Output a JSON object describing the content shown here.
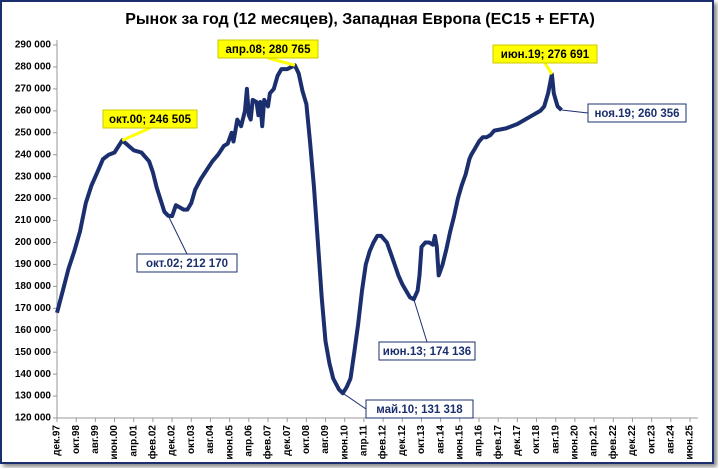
{
  "chart_data": {
    "type": "line",
    "title": "Рынок за год (12 месяцев), Западная Европа (ЕС15 + EFTA)",
    "x": [
      "1997-12",
      "1998-03",
      "1998-06",
      "1998-09",
      "1998-12",
      "1999-03",
      "1999-06",
      "1999-09",
      "1999-12",
      "2000-03",
      "2000-06",
      "2000-10",
      "2000-12",
      "2001-04",
      "2001-08",
      "2001-12",
      "2002-02",
      "2002-04",
      "2002-08",
      "2002-10",
      "2002-12",
      "2003-02",
      "2003-04",
      "2003-06",
      "2003-08",
      "2003-10",
      "2003-12",
      "2004-03",
      "2004-06",
      "2004-09",
      "2004-12",
      "2005-03",
      "2005-05",
      "2005-07",
      "2005-08",
      "2005-10",
      "2005-12",
      "2006-02",
      "2006-03",
      "2006-04",
      "2006-05",
      "2006-06",
      "2006-08",
      "2006-09",
      "2006-10",
      "2006-11",
      "2006-12",
      "2007-02",
      "2007-03",
      "2007-05",
      "2007-07",
      "2007-09",
      "2007-12",
      "2008-04",
      "2008-06",
      "2008-08",
      "2008-10",
      "2008-12",
      "2009-02",
      "2009-04",
      "2009-06",
      "2009-08",
      "2009-10",
      "2009-12",
      "2010-03",
      "2010-05",
      "2010-07",
      "2010-09",
      "2010-11",
      "2011-01",
      "2011-03",
      "2011-05",
      "2011-07",
      "2011-09",
      "2011-11",
      "2012-01",
      "2012-04",
      "2012-06",
      "2012-08",
      "2012-10",
      "2012-12",
      "2013-02",
      "2013-04",
      "2013-06",
      "2013-08",
      "2013-09",
      "2013-10",
      "2013-12",
      "2014-02",
      "2014-04",
      "2014-05",
      "2014-06",
      "2014-07",
      "2014-09",
      "2014-11",
      "2015-01",
      "2015-03",
      "2015-05",
      "2015-07",
      "2015-09",
      "2015-11",
      "2015-12",
      "2016-02",
      "2016-04",
      "2016-06",
      "2016-08",
      "2016-10",
      "2016-12",
      "2017-06",
      "2017-12",
      "2018-04",
      "2018-08",
      "2018-10",
      "2018-12",
      "2019-02",
      "2019-04",
      "2019-06",
      "2019-07",
      "2019-08",
      "2019-09",
      "2019-11"
    ],
    "series": [
      {
        "color": "#1b2f6e",
        "values": [
          168000,
          178000,
          188000,
          196000,
          205000,
          218000,
          226000,
          232000,
          238000,
          240000,
          241000,
          246505,
          245000,
          242000,
          241000,
          237000,
          232000,
          225000,
          214000,
          212170,
          212000,
          217000,
          216000,
          215000,
          215000,
          218000,
          224000,
          229000,
          233000,
          237000,
          240000,
          244000,
          245000,
          250000,
          246000,
          256000,
          253000,
          260000,
          270000,
          258000,
          256000,
          265000,
          264000,
          258000,
          264000,
          253000,
          265000,
          262000,
          268000,
          270000,
          276000,
          279000,
          279000,
          280765,
          277000,
          269000,
          263000,
          245000,
          225000,
          200000,
          175000,
          155000,
          145000,
          138000,
          133000,
          131318,
          134000,
          138000,
          150000,
          163000,
          178000,
          190000,
          196000,
          200000,
          203000,
          203000,
          200000,
          195000,
          190000,
          185000,
          181000,
          178000,
          175000,
          174136,
          178000,
          185000,
          198000,
          200000,
          200000,
          199000,
          203000,
          198000,
          185000,
          190000,
          197000,
          205000,
          212000,
          220000,
          226000,
          231000,
          238000,
          240000,
          243000,
          246000,
          248000,
          248000,
          249000,
          251000,
          252000,
          254000,
          256000,
          258000,
          259000,
          260000,
          262000,
          268000,
          276691,
          268000,
          265000,
          262000,
          260356
        ]
      }
    ],
    "xlim": [
      "1997-12",
      "2025-06"
    ],
    "xticks": [
      {
        "value": "1997-12",
        "label": "дек.97"
      },
      {
        "value": "1998-10",
        "label": "окт.98"
      },
      {
        "value": "1999-08",
        "label": "авг.99"
      },
      {
        "value": "2000-06",
        "label": "июн.00"
      },
      {
        "value": "2001-04",
        "label": "апр.01"
      },
      {
        "value": "2002-02",
        "label": "фев.02"
      },
      {
        "value": "2002-12",
        "label": "дек.02"
      },
      {
        "value": "2003-10",
        "label": "окт.03"
      },
      {
        "value": "2004-08",
        "label": "авг.04"
      },
      {
        "value": "2005-06",
        "label": "июн.05"
      },
      {
        "value": "2006-04",
        "label": "апр.06"
      },
      {
        "value": "2007-02",
        "label": "фев.07"
      },
      {
        "value": "2007-12",
        "label": "дек.07"
      },
      {
        "value": "2008-10",
        "label": "окт.08"
      },
      {
        "value": "2009-08",
        "label": "авг.09"
      },
      {
        "value": "2010-06",
        "label": "июн.10"
      },
      {
        "value": "2011-04",
        "label": "апр.11"
      },
      {
        "value": "2012-02",
        "label": "фев.12"
      },
      {
        "value": "2012-12",
        "label": "дек.12"
      },
      {
        "value": "2013-10",
        "label": "окт.13"
      },
      {
        "value": "2014-08",
        "label": "авг.14"
      },
      {
        "value": "2015-06",
        "label": "июн.15"
      },
      {
        "value": "2016-04",
        "label": "апр.16"
      },
      {
        "value": "2017-02",
        "label": "фев.17"
      },
      {
        "value": "2017-12",
        "label": "дек.17"
      },
      {
        "value": "2018-10",
        "label": "окт.18"
      },
      {
        "value": "2019-08",
        "label": "авг.19"
      },
      {
        "value": "2020-06",
        "label": "июн.20"
      },
      {
        "value": "2021-04",
        "label": "апр.21"
      },
      {
        "value": "2022-02",
        "label": "фев.22"
      },
      {
        "value": "2022-12",
        "label": "дек.22"
      },
      {
        "value": "2023-10",
        "label": "окт.23"
      },
      {
        "value": "2024-08",
        "label": "авг.24"
      },
      {
        "value": "2025-06",
        "label": "июн.25"
      }
    ],
    "ylim": [
      120000,
      290000
    ],
    "yticks": [
      {
        "value": 120000,
        "label": "120 000"
      },
      {
        "value": 130000,
        "label": "130 000"
      },
      {
        "value": 140000,
        "label": "140 000"
      },
      {
        "value": 150000,
        "label": "150 000"
      },
      {
        "value": 160000,
        "label": "160 000"
      },
      {
        "value": 170000,
        "label": "170 000"
      },
      {
        "value": 180000,
        "label": "180 000"
      },
      {
        "value": 190000,
        "label": "190 000"
      },
      {
        "value": 200000,
        "label": "200 000"
      },
      {
        "value": 210000,
        "label": "210 000"
      },
      {
        "value": 220000,
        "label": "220 000"
      },
      {
        "value": 230000,
        "label": "230 000"
      },
      {
        "value": 240000,
        "label": "240 000"
      },
      {
        "value": 250000,
        "label": "250 000"
      },
      {
        "value": 260000,
        "label": "260 000"
      },
      {
        "value": 270000,
        "label": "270 000"
      },
      {
        "value": 280000,
        "label": "280 000"
      },
      {
        "value": 290000,
        "label": "290 000"
      }
    ],
    "grid": false,
    "annotations": [
      {
        "text": "окт.00; 246 505",
        "color": "#ffff00"
      },
      {
        "text": "апр.08; 280 765",
        "color": "#ffff00"
      },
      {
        "text": "июн.19; 276 691",
        "color": "#ffff00"
      },
      {
        "text": "ноя.19; 260 356",
        "color": "#ffffff"
      },
      {
        "text": "окт.02; 212 170",
        "color": "#ffffff"
      },
      {
        "text": "июн.13; 174 136",
        "color": "#ffffff"
      },
      {
        "text": "май.10; 131 318",
        "color": "#ffffff"
      }
    ]
  }
}
